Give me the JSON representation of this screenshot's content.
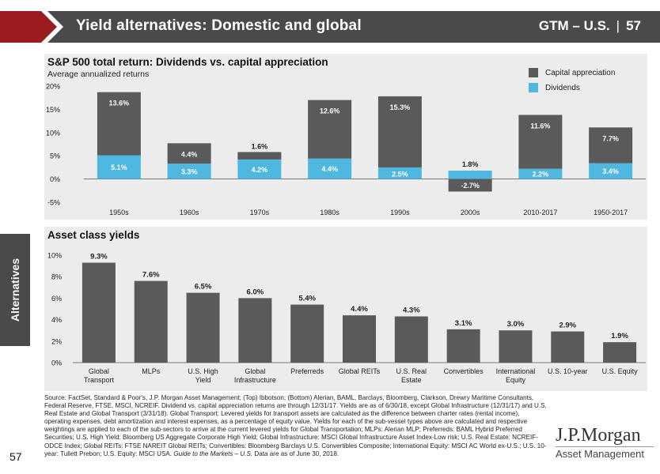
{
  "header": {
    "title": "Yield alternatives: Domestic and global",
    "gtm": "GTM – U.S.",
    "page_number": "57"
  },
  "side_tab": "Alternatives",
  "page_number_bottom": "57",
  "colors": {
    "header_bg": "#4a4a4a",
    "panel_bg": "#ececec",
    "capital_appreciation": "#5a5a5a",
    "dividends": "#4fb8e0",
    "yield_bar": "#5a5a5a"
  },
  "chart_data": [
    {
      "type": "bar",
      "stacked": true,
      "title": "S&P 500 total return: Dividends vs. capital appreciation",
      "subtitle": "Average annualized returns",
      "categories": [
        "1950s",
        "1960s",
        "1970s",
        "1980s",
        "1990s",
        "2000s",
        "2010-2017",
        "1950-2017"
      ],
      "series": [
        {
          "name": "Dividends",
          "values": [
            5.1,
            3.3,
            4.2,
            4.4,
            2.5,
            1.8,
            2.2,
            3.4
          ],
          "labels": [
            "5.1%",
            "3.3%",
            "4.2%",
            "4.4%",
            "2.5%",
            "1.8%",
            "2.2%",
            "3.4%"
          ]
        },
        {
          "name": "Capital appreciation",
          "values": [
            13.6,
            4.4,
            1.6,
            12.6,
            15.3,
            -2.7,
            11.6,
            7.7
          ],
          "labels": [
            "13.6%",
            "4.4%",
            "1.6%",
            "12.6%",
            "15.3%",
            "-2.7%",
            "11.6%",
            "7.7%"
          ]
        }
      ],
      "legend": [
        "Capital appreciation",
        "Dividends"
      ],
      "y_ticks": [
        "20%",
        "15%",
        "10%",
        "5%",
        "0%",
        "-5%"
      ],
      "ylim": [
        -5,
        20
      ]
    },
    {
      "type": "bar",
      "title": "Asset class yields",
      "categories": [
        [
          "Global",
          "Transport"
        ],
        [
          "MLPs"
        ],
        [
          "U.S. High",
          "Yield"
        ],
        [
          "Global",
          "Infrastructure"
        ],
        [
          "Preferreds"
        ],
        [
          "Global REITs"
        ],
        [
          "U.S. Real",
          "Estate"
        ],
        [
          "Convertibles"
        ],
        [
          "International",
          "Equity"
        ],
        [
          "U.S. 10-year"
        ],
        [
          "U.S. Equity"
        ]
      ],
      "values": [
        9.3,
        7.6,
        6.5,
        6.0,
        5.4,
        4.4,
        4.3,
        3.1,
        3.0,
        2.9,
        1.9
      ],
      "labels": [
        "9.3%",
        "7.6%",
        "6.5%",
        "6.0%",
        "5.4%",
        "4.4%",
        "4.3%",
        "3.1%",
        "3.0%",
        "2.9%",
        "1.9%"
      ],
      "y_ticks": [
        "10%",
        "8%",
        "6%",
        "4%",
        "2%",
        "0%"
      ],
      "ylim": [
        0,
        10
      ]
    }
  ],
  "source_text": "Source: FactSet, Standard & Poor's, J.P. Morgan Asset Management; (Top) Ibbotson; (Bottom) Alerian, BAML, Barclays, Bloomberg, Clarkson, Drewry Maritime Consultants, Federal Reserve, FTSE, MSCI, NCREIF. Dividend vs. capital appreciation returns are through 12/31/17. Yields are as of 6/30/18, except Global Infrastructure (12/31/17) and U.S. Real Estate and Global Transport (3/31/18). Global Transport: Levered yields for transport assets are calculated as the difference between charter rates (rental income), operating expenses, debt amortization and interest expenses, as a percentage of equity value. Yields for each of the sub-vessel types above are calculated and respective weightings are applied to each of the sub-sectors to arrive at the current levered yields for Global Transportation; MLPs: Alerian MLP; Preferreds: BAML Hybrid Preferred Securities; U.S. High Yield: Bloomberg US Aggregate Corporate High Yield; Global Infrastructure: MSCI Global Infrastructure Asset Index-Low risk; U.S. Real Estate: NCREIF-ODCE Index; Global REITs: FTSE NAREIT Global REITs; Convertibles: Bloomberg Barclays U.S. Convertibles Composite; International Equity: MSCI AC World ex-U.S.; U.S. 10-year: Tullett Prebon; U.S. Equity: MSCI USA.",
  "source_guide": "Guide to the Markets – U.S.",
  "source_tail": "Data are as of June 30, 2018.",
  "logo": {
    "main": "J.P.Morgan",
    "sub": "Asset Management"
  }
}
